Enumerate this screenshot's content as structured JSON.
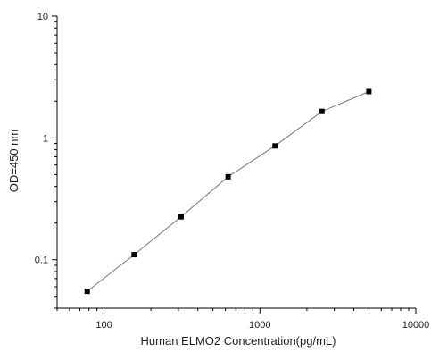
{
  "chart_data": {
    "type": "line",
    "title": "",
    "xlabel": "Human ELMO2 Concentration(pg/mL)",
    "ylabel": "OD=450 nm",
    "x_scale": "log",
    "y_scale": "log",
    "xlim": [
      50,
      10000
    ],
    "ylim": [
      0.04,
      10
    ],
    "x_ticks": [
      {
        "value": 100,
        "label": "100"
      },
      {
        "value": 1000,
        "label": "1000"
      },
      {
        "value": 10000,
        "label": "10000"
      }
    ],
    "y_ticks": [
      {
        "value": 0.1,
        "label": "0.1"
      },
      {
        "value": 1,
        "label": "1"
      },
      {
        "value": 10,
        "label": "10"
      }
    ],
    "grid": false,
    "legend": "none",
    "series": [
      {
        "x": [
          78,
          156,
          312,
          625,
          1250,
          2500,
          5000
        ],
        "y": [
          0.055,
          0.11,
          0.225,
          0.48,
          0.86,
          1.65,
          2.4
        ]
      }
    ],
    "colors": {
      "line": "#777777",
      "marker": "#000000",
      "axis": "#000000"
    }
  }
}
